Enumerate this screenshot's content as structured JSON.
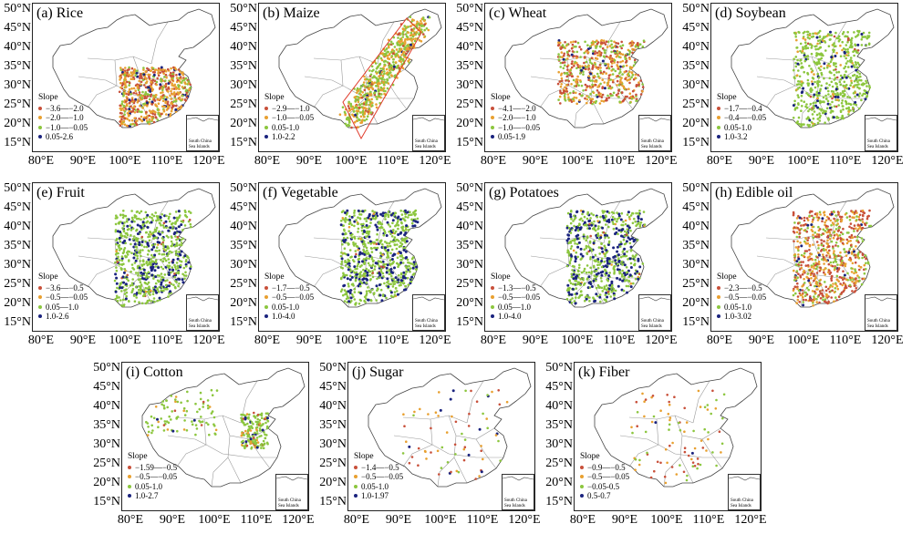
{
  "axes": {
    "y_ticks": [
      "50°N",
      "45°N",
      "40°N",
      "35°N",
      "30°N",
      "25°N",
      "20°N",
      "15°N"
    ],
    "x_ticks": [
      "80°E",
      "90°E",
      "100°E",
      "110°E",
      "120°E"
    ]
  },
  "legend_title": "Slope",
  "inset_label_line1": "South China",
  "inset_label_line2": "Sea Islands",
  "colors": {
    "class1": "#c8503a",
    "class2": "#e8a030",
    "class3": "#8cc63e",
    "class4": "#1a237e",
    "boundary": "#9a9a9a",
    "outline": "#444444",
    "maize_box": "#e03a2a"
  },
  "panels": [
    {
      "id": "rice",
      "title": "(a) Rice",
      "legend": [
        "−3.6—−2.0",
        "−2.0—−1.0",
        "−1.0—−0.05",
        "0.05-2.6"
      ],
      "density": [
        0.3,
        0.45,
        0.2,
        0.05
      ],
      "points": 650,
      "region": "south"
    },
    {
      "id": "maize",
      "title": "(b) Maize",
      "legend": [
        "−2.9—−1.0",
        "−1.0—−0.05",
        "0.05-1.0",
        "1.0-2.2"
      ],
      "density": [
        0.1,
        0.4,
        0.48,
        0.02
      ],
      "points": 650,
      "region": "belt"
    },
    {
      "id": "wheat",
      "title": "(c) Wheat",
      "legend": [
        "−4.1—−2.0",
        "−2.0—−1.0",
        "−1.0—−0.05",
        "0.05-1.9"
      ],
      "density": [
        0.35,
        0.35,
        0.28,
        0.02
      ],
      "points": 600,
      "region": "north"
    },
    {
      "id": "soybean",
      "title": "(d) Soybean",
      "legend": [
        "−1.7—−0.4",
        "−0.4—−0.05",
        "0.05-1.0",
        "1.0-3.2"
      ],
      "density": [
        0.02,
        0.05,
        0.85,
        0.08
      ],
      "points": 600,
      "region": "east"
    },
    {
      "id": "fruit",
      "title": "(e) Fruit",
      "legend": [
        "−3.6—−0.5",
        "−0.5—−0.05",
        "0.05—1.0",
        "1.0-2.6"
      ],
      "density": [
        0.01,
        0.02,
        0.72,
        0.25
      ],
      "points": 700,
      "region": "east"
    },
    {
      "id": "vegetable",
      "title": "(f) Vegetable",
      "legend": [
        "−1.7—−0.5",
        "−0.5—−0.05",
        "0.05-1.0",
        "1.0-4.0"
      ],
      "density": [
        0.01,
        0.02,
        0.7,
        0.27
      ],
      "points": 750,
      "region": "east"
    },
    {
      "id": "potatoes",
      "title": "(g) Potatoes",
      "legend": [
        "−1.3—−0.5",
        "−0.5—−0.05",
        "0.05—1.0",
        "1.0-4.0"
      ],
      "density": [
        0.01,
        0.02,
        0.65,
        0.32
      ],
      "points": 650,
      "region": "east"
    },
    {
      "id": "edible-oil",
      "title": "(h) Edible oil",
      "legend": [
        "−2.3—−0.5",
        "−0.5—−0.05",
        "0.05-1.0",
        "1.0-3.02"
      ],
      "density": [
        0.4,
        0.35,
        0.22,
        0.03
      ],
      "points": 700,
      "region": "east"
    },
    {
      "id": "cotton",
      "title": "(i) Cotton",
      "legend": [
        "−1.59—−0.5",
        "−0.5—−0.05",
        "0.05-1.0",
        "1.0-2.7"
      ],
      "density": [
        0.05,
        0.15,
        0.72,
        0.08
      ],
      "points": 260,
      "region": "cotton"
    },
    {
      "id": "sugar",
      "title": "(j) Sugar",
      "legend": [
        "−1.4—−0.5",
        "−0.5—−0.05",
        "0.05-1.0",
        "1.0-1.97"
      ],
      "density": [
        0.3,
        0.3,
        0.3,
        0.1
      ],
      "points": 70,
      "region": "sparse"
    },
    {
      "id": "fiber",
      "title": "(k) Fiber",
      "legend": [
        "−0.9—−0.5",
        "−0.5—−0.05",
        "−0.05-0.5",
        "0.5-0.7"
      ],
      "density": [
        0.35,
        0.3,
        0.3,
        0.05
      ],
      "points": 90,
      "region": "sparse"
    }
  ]
}
